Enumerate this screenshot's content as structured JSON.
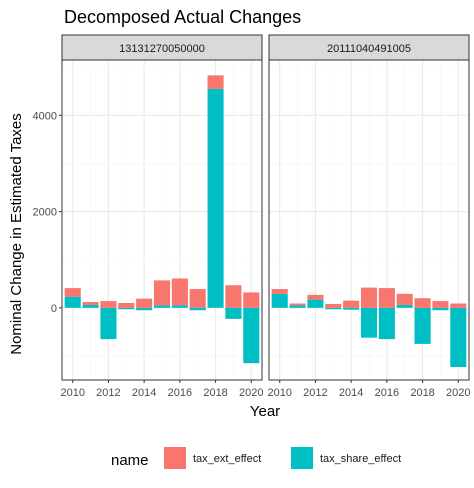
{
  "chart_data": {
    "type": "bar",
    "stacked": true,
    "title": "Decomposed Actual Changes",
    "xlabel": "Year",
    "ylabel": "Nominal Change in Estimated Taxes",
    "ylim": [
      -1500,
      5150
    ],
    "yticks": [
      0,
      2000,
      4000
    ],
    "xticks": [
      2010,
      2012,
      2014,
      2016,
      2018,
      2020
    ],
    "xlim": [
      2009.4,
      2020.6
    ],
    "grid": true,
    "legend": {
      "title": "name",
      "position": "bottom",
      "entries": [
        "tax_ext_effect",
        "tax_share_effect"
      ]
    },
    "colors": {
      "tax_ext_effect": "#F8766D",
      "tax_share_effect": "#00BFC4",
      "panel_border": "#333333",
      "grid_major": "#EBEBEB",
      "grid_minor": "#F5F5F5",
      "strip_fill": "#D9D9D9"
    },
    "x": [
      2010,
      2011,
      2012,
      2013,
      2014,
      2015,
      2016,
      2017,
      2018,
      2019,
      2020
    ],
    "panels": [
      {
        "strip": "13131270050000",
        "series": [
          {
            "name": "tax_share_effect",
            "values": [
              230,
              60,
              -650,
              -30,
              -50,
              50,
              50,
              -50,
              4550,
              -230,
              -1150
            ]
          },
          {
            "name": "tax_ext_effect",
            "values": [
              180,
              60,
              140,
              100,
              190,
              520,
              560,
              390,
              280,
              470,
              320
            ]
          }
        ]
      },
      {
        "strip": "20111040491005",
        "series": [
          {
            "name": "tax_share_effect",
            "values": [
              290,
              50,
              170,
              -30,
              -40,
              -620,
              -650,
              60,
              -750,
              -50,
              -1230
            ]
          },
          {
            "name": "tax_ext_effect",
            "values": [
              100,
              40,
              100,
              80,
              150,
              420,
              410,
              230,
              200,
              140,
              90
            ]
          }
        ]
      }
    ]
  }
}
